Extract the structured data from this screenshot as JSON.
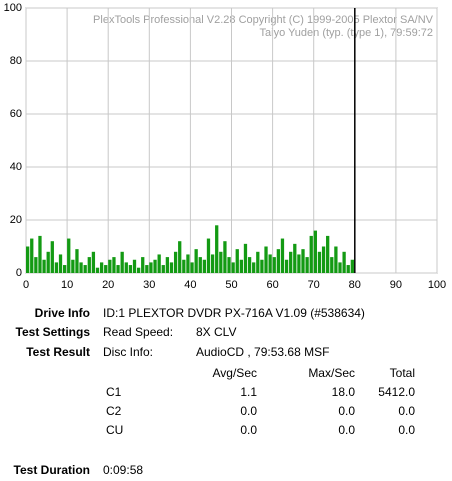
{
  "chart_data": {
    "type": "bar",
    "title": "PlexTools Professional V2.28 Copyright (C) 1999-2005 Plextor SA/NV",
    "subtitle": "Taiyo Yuden (typ. (type 1), 79:59:72",
    "x": [
      0,
      1,
      2,
      3,
      4,
      5,
      6,
      7,
      8,
      9,
      10,
      11,
      12,
      13,
      14,
      15,
      16,
      17,
      18,
      19,
      20,
      21,
      22,
      23,
      24,
      25,
      26,
      27,
      28,
      29,
      30,
      31,
      32,
      33,
      34,
      35,
      36,
      37,
      38,
      39,
      40,
      41,
      42,
      43,
      44,
      45,
      46,
      47,
      48,
      49,
      50,
      51,
      52,
      53,
      54,
      55,
      56,
      57,
      58,
      59,
      60,
      61,
      62,
      63,
      64,
      65,
      66,
      67,
      68,
      69,
      70,
      71,
      72,
      73,
      74,
      75,
      76,
      77,
      78,
      79
    ],
    "values": [
      10,
      13,
      6,
      14,
      5,
      8,
      12,
      4,
      7,
      3,
      13,
      5,
      9,
      4,
      3,
      6,
      8,
      2,
      4,
      3,
      5,
      6,
      3,
      8,
      4,
      3,
      5,
      2,
      6,
      3,
      4,
      5,
      7,
      3,
      6,
      4,
      8,
      12,
      5,
      7,
      4,
      9,
      6,
      5,
      13,
      7,
      18,
      8,
      12,
      6,
      4,
      9,
      5,
      11,
      6,
      4,
      8,
      5,
      10,
      7,
      6,
      9,
      13,
      5,
      8,
      11,
      7,
      9,
      6,
      14,
      16,
      8,
      10,
      14,
      6,
      10,
      4,
      8,
      3,
      5
    ],
    "color": "#139a13",
    "cursor_x": 80,
    "xlim": [
      0,
      100
    ],
    "xticks": [
      0,
      10,
      20,
      30,
      40,
      50,
      60,
      70,
      80,
      90,
      100
    ],
    "ylim": [
      0,
      100
    ],
    "yticks": [
      0,
      20,
      40,
      60,
      80,
      100
    ],
    "grid": true
  },
  "report": {
    "drive_info": {
      "label": "Drive Info",
      "value": "ID:1 PLEXTOR DVDR PX-716A V1.09 (#538634)"
    },
    "test_settings": {
      "label": "Test Settings",
      "key": "Read Speed:",
      "value": "8X CLV"
    },
    "test_result": {
      "label": "Test Result",
      "key": "Disc Info:",
      "value": "AudioCD , 79:53.68 MSF"
    },
    "header": [
      "Avg/Sec",
      "Max/Sec",
      "Total"
    ],
    "rows": [
      [
        "C1",
        "1.1",
        "18.0",
        "5412.0"
      ],
      [
        "C2",
        "0.0",
        "0.0",
        "0.0"
      ],
      [
        "CU",
        "0.0",
        "0.0",
        "0.0"
      ]
    ],
    "test_duration": {
      "label": "Test Duration",
      "value": "0:09:58"
    }
  }
}
